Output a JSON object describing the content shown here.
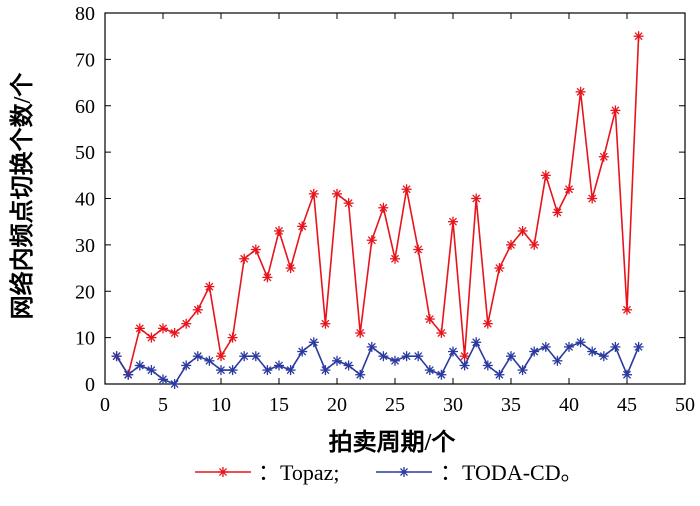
{
  "chart_data": {
    "type": "line",
    "xlabel": "拍卖周期/个",
    "ylabel": "网络内频点切换个数/个",
    "xlim": [
      0,
      50
    ],
    "ylim": [
      0,
      80
    ],
    "xticks": [
      0,
      5,
      10,
      15,
      20,
      25,
      30,
      35,
      40,
      45,
      50
    ],
    "yticks": [
      0,
      10,
      20,
      30,
      40,
      50,
      60,
      70,
      80
    ],
    "grid": false,
    "legend_position": "bottom",
    "x": [
      1,
      2,
      3,
      4,
      5,
      6,
      7,
      8,
      9,
      10,
      11,
      12,
      13,
      14,
      15,
      16,
      17,
      18,
      19,
      20,
      21,
      22,
      23,
      24,
      25,
      26,
      27,
      28,
      29,
      30,
      31,
      32,
      33,
      34,
      35,
      36,
      37,
      38,
      39,
      40,
      41,
      42,
      43,
      44,
      45,
      46
    ],
    "series": [
      {
        "name": "Topaz",
        "legend_label": "：Topaz;",
        "color": "#e8141c",
        "marker": "asterisk",
        "values": [
          6,
          2,
          12,
          10,
          12,
          11,
          13,
          16,
          21,
          6,
          10,
          27,
          29,
          23,
          33,
          25,
          34,
          41,
          13,
          41,
          39,
          11,
          31,
          38,
          27,
          42,
          29,
          14,
          11,
          35,
          6,
          40,
          13,
          25,
          30,
          33,
          30,
          45,
          37,
          42,
          63,
          40,
          49,
          59,
          16,
          75
        ]
      },
      {
        "name": "TODA-CD",
        "legend_label": "：TODA-CD。",
        "color": "#2a3aa0",
        "marker": "asterisk",
        "values": [
          6,
          2,
          4,
          3,
          1,
          0,
          4,
          6,
          5,
          3,
          3,
          6,
          6,
          3,
          4,
          3,
          7,
          9,
          3,
          5,
          4,
          2,
          8,
          6,
          5,
          6,
          6,
          3,
          2,
          7,
          4,
          9,
          4,
          2,
          6,
          3,
          7,
          8,
          5,
          8,
          9,
          7,
          6,
          8,
          2,
          8
        ]
      }
    ]
  }
}
